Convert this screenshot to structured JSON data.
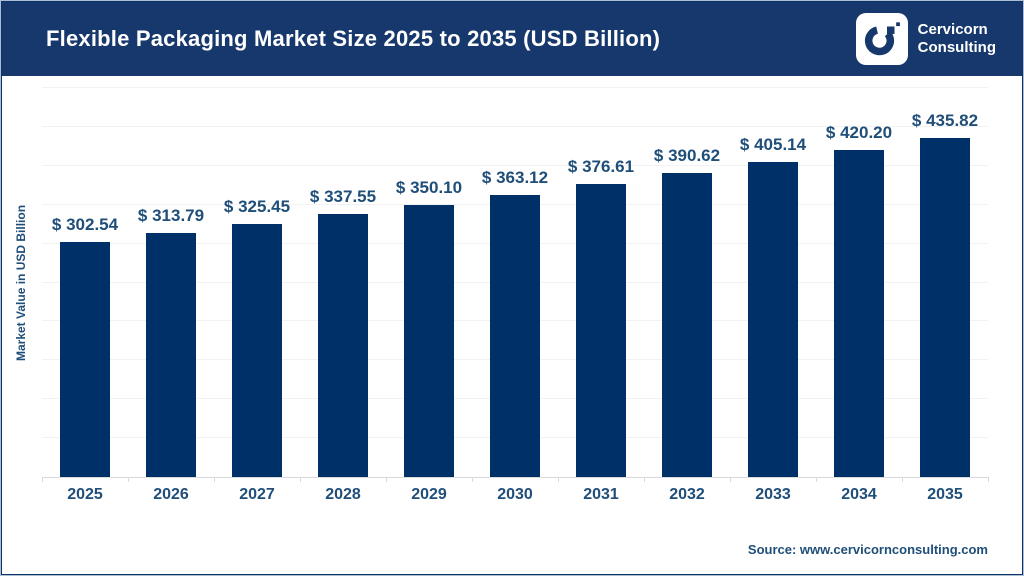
{
  "header": {
    "brand": {
      "line1": "Cervicorn",
      "line2": "Consulting"
    }
  },
  "chart_data": {
    "type": "bar",
    "title": "Flexible Packaging Market Size 2025 to 2035 (USD Billion)",
    "categories": [
      "2025",
      "2026",
      "2027",
      "2028",
      "2029",
      "2030",
      "2031",
      "2032",
      "2033",
      "2034",
      "2035"
    ],
    "values": [
      302.54,
      313.79,
      325.45,
      337.55,
      350.1,
      363.12,
      376.61,
      390.62,
      405.14,
      420.2,
      435.82
    ],
    "value_prefix": "$ ",
    "xlabel": "",
    "ylabel": "Market Value in USD Billion",
    "ylim": [
      0,
      500
    ],
    "grid_step": 50,
    "grid": true,
    "legend": false,
    "bar_color": "#003068",
    "label_color": "#1f4e79"
  },
  "footer": {
    "source": "Source: www.cervicornconsulting.com"
  }
}
